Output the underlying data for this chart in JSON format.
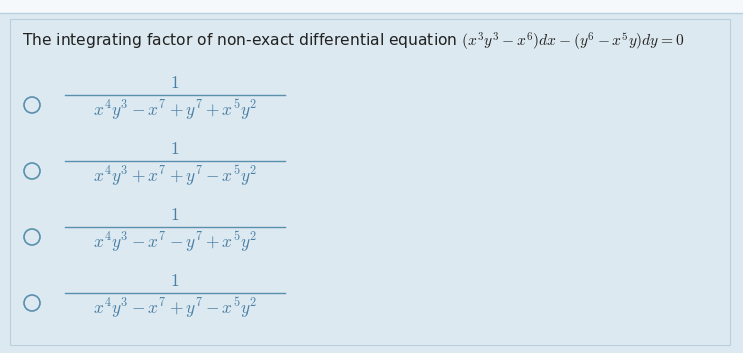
{
  "bg_top": "#dce9f0",
  "bg_white": "#f5f9fc",
  "bg_main": "#dce9f0",
  "border_color": "#b8d0de",
  "question_text": "The integrating factor of non-exact differential equation $(x^3y^3 - x^6)dx - (y^6 - x^5y)dy = 0$",
  "numerators": [
    "$1$",
    "$1$",
    "$1$",
    "$1$"
  ],
  "denominators": [
    "$x^4y^3 - x^7 + y^7 + x^5y^2$",
    "$x^4y^3 + x^7 + y^7 - x^5y^2$",
    "$x^4y^3 - x^7 - y^7 + x^5y^2$",
    "$x^4y^3 - x^7 + y^7 - x^5y^2$"
  ],
  "question_fontsize": 11.2,
  "num_fontsize": 12.5,
  "denom_fontsize": 12.5,
  "text_color": "#4a7fa5",
  "question_color": "#222222",
  "circle_color": "#5a8fae",
  "line_color": "#5a8fae",
  "fig_width": 7.43,
  "fig_height": 3.53,
  "dpi": 100
}
